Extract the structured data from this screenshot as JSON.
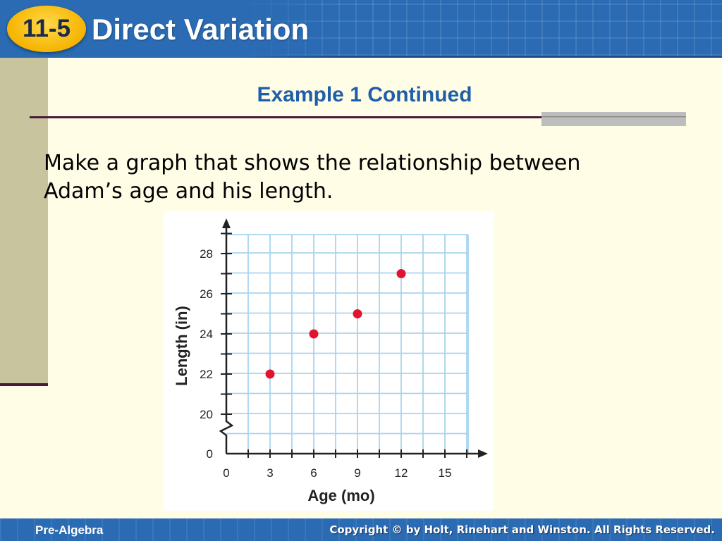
{
  "header": {
    "badge": "11-5",
    "title": "Direct Variation"
  },
  "subtitle": "Example 1 Continued",
  "body": {
    "line1": "Make a graph that shows the relationship between",
    "line2": "Adam’s age and his length."
  },
  "footer": {
    "left": "Pre-Algebra",
    "right": "Copyright © by Holt, Rinehart and Winston. All Rights Reserved."
  },
  "colors": {
    "header_blue": "#2a6bb3",
    "badge_gold": "#f5b400",
    "subtitle_blue": "#1f5ea8",
    "point_red": "#e0142e",
    "grid_blue": "#a8d4ee"
  },
  "chart_data": {
    "type": "scatter",
    "xlabel": "Age (mo)",
    "ylabel": "Length (in)",
    "x_ticks": [
      "0",
      "3",
      "6",
      "9",
      "12",
      "15"
    ],
    "y_ticks": [
      "0",
      "20",
      "22",
      "24",
      "26",
      "28"
    ],
    "xlim": [
      0,
      18
    ],
    "ylim": [
      18,
      29
    ],
    "axis_break": true,
    "grid": true,
    "points": [
      {
        "x": 3,
        "y": 22
      },
      {
        "x": 6,
        "y": 24
      },
      {
        "x": 9,
        "y": 25
      },
      {
        "x": 12,
        "y": 27
      }
    ]
  }
}
